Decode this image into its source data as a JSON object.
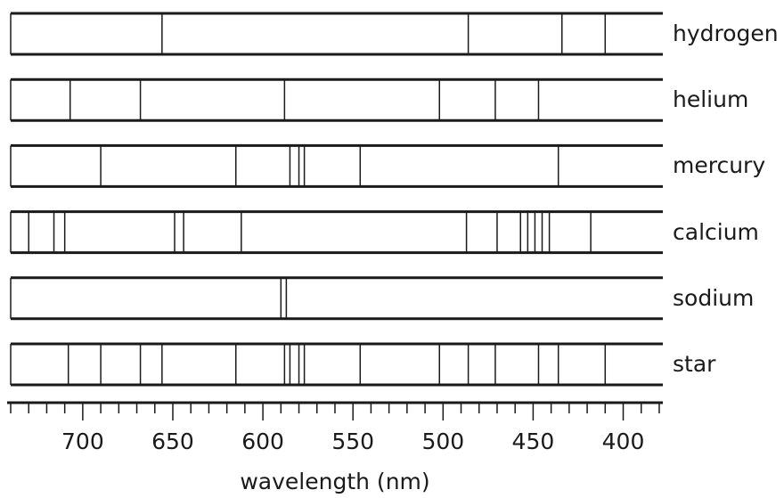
{
  "chart_data": {
    "type": "spectral-lines",
    "xlabel": "wavelength (nm)",
    "xlim": [
      740,
      378
    ],
    "x_ticks": [
      700,
      650,
      600,
      550,
      500,
      450,
      400
    ],
    "minor_tick_step": 10,
    "line_color": "#1a1a1a",
    "spectra": [
      {
        "name": "hydrogen",
        "lines": [
          656,
          486,
          434,
          410
        ]
      },
      {
        "name": "helium",
        "lines": [
          707,
          668,
          588,
          502,
          471,
          447
        ]
      },
      {
        "name": "mercury",
        "lines": [
          690,
          615,
          585,
          580,
          577,
          546,
          436
        ]
      },
      {
        "name": "calcium",
        "lines": [
          730,
          716,
          710,
          649,
          644,
          612,
          487,
          470,
          457,
          453,
          449,
          445,
          441,
          418
        ]
      },
      {
        "name": "sodium",
        "lines": [
          590,
          587
        ]
      },
      {
        "name": "star",
        "lines": [
          708,
          690,
          668,
          656,
          615,
          588,
          585,
          580,
          577,
          546,
          502,
          486,
          471,
          447,
          436,
          410
        ]
      }
    ]
  }
}
